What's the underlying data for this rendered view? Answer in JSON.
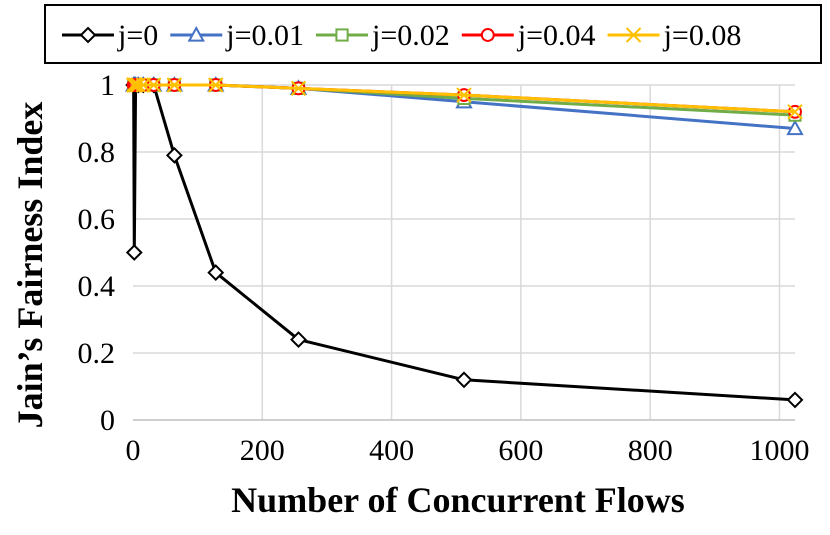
{
  "chart_data": {
    "type": "line",
    "xlabel": "Number of Concurrent Flows",
    "ylabel": "Jain’s Fairness Index",
    "xlim": [
      0,
      1024
    ],
    "ylim": [
      0,
      1
    ],
    "x_ticks": [
      0,
      200,
      400,
      600,
      800,
      1000
    ],
    "x_tick_labels": [
      "0",
      "200",
      "400",
      "600",
      "800",
      "1000"
    ],
    "y_ticks": [
      0,
      0.2,
      0.4,
      0.6,
      0.8,
      1
    ],
    "y_tick_labels": [
      "0",
      "0.2",
      "0.4",
      "0.6",
      "0.8",
      "1"
    ],
    "grid": true,
    "legend_position": "top",
    "x": [
      1,
      2,
      4,
      8,
      16,
      32,
      64,
      128,
      256,
      512,
      1024
    ],
    "series": [
      {
        "name": "j=0",
        "color": "#000000",
        "marker": "diamond",
        "values": [
          1,
          0.5,
          1,
          1,
          1,
          1,
          0.79,
          0.44,
          0.24,
          0.12,
          0.06
        ]
      },
      {
        "name": "j=0.01",
        "color": "#4472C4",
        "marker": "triangle",
        "values": [
          1,
          1,
          1,
          1,
          1,
          1,
          1,
          1,
          0.99,
          0.95,
          0.87
        ]
      },
      {
        "name": "j=0.02",
        "color": "#70AD47",
        "marker": "square",
        "values": [
          1,
          1,
          1,
          1,
          1,
          1,
          1,
          1,
          0.99,
          0.96,
          0.91
        ]
      },
      {
        "name": "j=0.04",
        "color": "#FF0000",
        "marker": "circle",
        "values": [
          1,
          1,
          1,
          1,
          1,
          1,
          1,
          1,
          0.99,
          0.97,
          0.92
        ]
      },
      {
        "name": "j=0.08",
        "color": "#FFC000",
        "marker": "x",
        "values": [
          1,
          1,
          1,
          1,
          1,
          1,
          1,
          1,
          0.99,
          0.97,
          0.92
        ]
      }
    ]
  }
}
